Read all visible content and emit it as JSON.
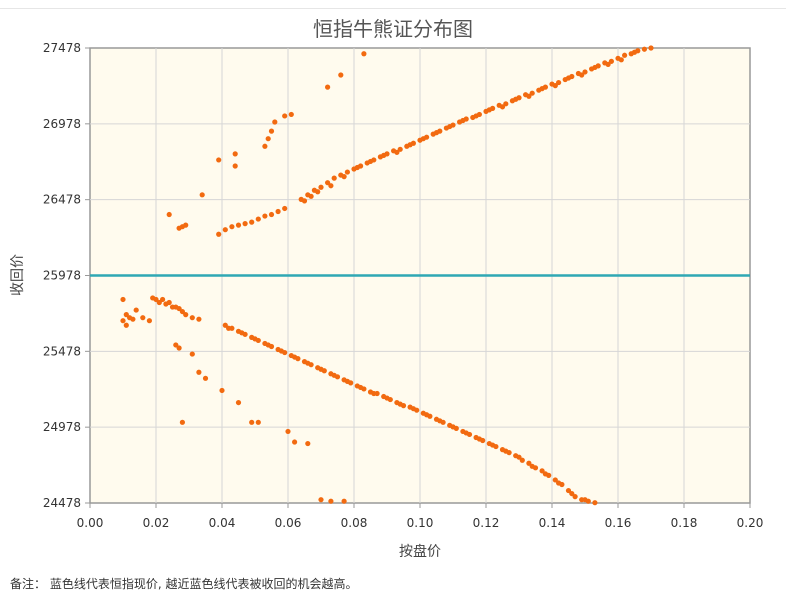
{
  "chart_data": {
    "type": "scatter",
    "title": "恒指牛熊证分布图",
    "xlabel": "按盘价",
    "ylabel": "收回价",
    "xlim": [
      0.0,
      0.2
    ],
    "ylim": [
      24478,
      27478
    ],
    "x_ticks": [
      "0.00",
      "0.02",
      "0.04",
      "0.06",
      "0.08",
      "0.10",
      "0.12",
      "0.14",
      "0.16",
      "0.18",
      "0.20"
    ],
    "y_ticks": [
      "24478",
      "24978",
      "25478",
      "25978",
      "26478",
      "26978",
      "27478"
    ],
    "grid": true,
    "reference_line": {
      "y": 25978,
      "color": "#2fa8b4"
    },
    "series": [
      {
        "color": "#f26a10",
        "points": [
          [
            0.027,
            26290
          ],
          [
            0.028,
            26300
          ],
          [
            0.029,
            26310
          ],
          [
            0.024,
            26380
          ],
          [
            0.034,
            26510
          ],
          [
            0.039,
            26740
          ],
          [
            0.044,
            26700
          ],
          [
            0.044,
            26780
          ],
          [
            0.053,
            26830
          ],
          [
            0.054,
            26880
          ],
          [
            0.055,
            26930
          ],
          [
            0.056,
            26990
          ],
          [
            0.059,
            27030
          ],
          [
            0.061,
            27040
          ],
          [
            0.072,
            27220
          ],
          [
            0.076,
            27300
          ],
          [
            0.083,
            27440
          ],
          [
            0.039,
            26250
          ],
          [
            0.041,
            26280
          ],
          [
            0.043,
            26300
          ],
          [
            0.045,
            26310
          ],
          [
            0.047,
            26320
          ],
          [
            0.049,
            26330
          ],
          [
            0.051,
            26350
          ],
          [
            0.053,
            26370
          ],
          [
            0.055,
            26380
          ],
          [
            0.057,
            26400
          ],
          [
            0.059,
            26420
          ],
          [
            0.064,
            26480
          ],
          [
            0.066,
            26510
          ],
          [
            0.068,
            26540
          ],
          [
            0.07,
            26560
          ],
          [
            0.072,
            26590
          ],
          [
            0.074,
            26620
          ],
          [
            0.076,
            26640
          ],
          [
            0.078,
            26660
          ],
          [
            0.08,
            26680
          ],
          [
            0.082,
            26700
          ],
          [
            0.084,
            26720
          ],
          [
            0.086,
            26740
          ],
          [
            0.088,
            26760
          ],
          [
            0.09,
            26780
          ],
          [
            0.092,
            26800
          ],
          [
            0.094,
            26810
          ],
          [
            0.096,
            26830
          ],
          [
            0.098,
            26850
          ],
          [
            0.1,
            26870
          ],
          [
            0.102,
            26890
          ],
          [
            0.104,
            26910
          ],
          [
            0.106,
            26930
          ],
          [
            0.108,
            26950
          ],
          [
            0.11,
            26970
          ],
          [
            0.112,
            26990
          ],
          [
            0.114,
            27010
          ],
          [
            0.116,
            27020
          ],
          [
            0.118,
            27040
          ],
          [
            0.12,
            27060
          ],
          [
            0.122,
            27080
          ],
          [
            0.124,
            27100
          ],
          [
            0.126,
            27110
          ],
          [
            0.128,
            27130
          ],
          [
            0.13,
            27150
          ],
          [
            0.132,
            27170
          ],
          [
            0.134,
            27180
          ],
          [
            0.136,
            27200
          ],
          [
            0.138,
            27220
          ],
          [
            0.14,
            27240
          ],
          [
            0.142,
            27250
          ],
          [
            0.144,
            27270
          ],
          [
            0.146,
            27290
          ],
          [
            0.148,
            27310
          ],
          [
            0.15,
            27320
          ],
          [
            0.152,
            27340
          ],
          [
            0.154,
            27360
          ],
          [
            0.156,
            27380
          ],
          [
            0.158,
            27390
          ],
          [
            0.16,
            27410
          ],
          [
            0.162,
            27430
          ],
          [
            0.164,
            27440
          ],
          [
            0.166,
            27460
          ],
          [
            0.168,
            27470
          ],
          [
            0.17,
            27478
          ],
          [
            0.065,
            26470
          ],
          [
            0.067,
            26500
          ],
          [
            0.069,
            26530
          ],
          [
            0.073,
            26570
          ],
          [
            0.077,
            26630
          ],
          [
            0.081,
            26690
          ],
          [
            0.085,
            26730
          ],
          [
            0.089,
            26770
          ],
          [
            0.093,
            26790
          ],
          [
            0.097,
            26840
          ],
          [
            0.101,
            26880
          ],
          [
            0.105,
            26920
          ],
          [
            0.109,
            26960
          ],
          [
            0.113,
            27000
          ],
          [
            0.117,
            27030
          ],
          [
            0.121,
            27070
          ],
          [
            0.125,
            27090
          ],
          [
            0.129,
            27140
          ],
          [
            0.133,
            27160
          ],
          [
            0.137,
            27210
          ],
          [
            0.141,
            27230
          ],
          [
            0.145,
            27280
          ],
          [
            0.149,
            27300
          ],
          [
            0.153,
            27350
          ],
          [
            0.157,
            27370
          ],
          [
            0.161,
            27400
          ],
          [
            0.165,
            27450
          ],
          [
            0.01,
            25820
          ],
          [
            0.01,
            25680
          ],
          [
            0.011,
            25650
          ],
          [
            0.011,
            25720
          ],
          [
            0.012,
            25700
          ],
          [
            0.013,
            25690
          ],
          [
            0.014,
            25750
          ],
          [
            0.016,
            25700
          ],
          [
            0.018,
            25680
          ],
          [
            0.019,
            25830
          ],
          [
            0.02,
            25820
          ],
          [
            0.021,
            25800
          ],
          [
            0.022,
            25820
          ],
          [
            0.023,
            25790
          ],
          [
            0.024,
            25800
          ],
          [
            0.025,
            25770
          ],
          [
            0.026,
            25770
          ],
          [
            0.027,
            25760
          ],
          [
            0.028,
            25740
          ],
          [
            0.029,
            25720
          ],
          [
            0.031,
            25700
          ],
          [
            0.033,
            25690
          ],
          [
            0.026,
            25520
          ],
          [
            0.027,
            25500
          ],
          [
            0.031,
            25460
          ],
          [
            0.033,
            25340
          ],
          [
            0.035,
            25300
          ],
          [
            0.04,
            25220
          ],
          [
            0.045,
            25140
          ],
          [
            0.049,
            25010
          ],
          [
            0.051,
            25010
          ],
          [
            0.028,
            25010
          ],
          [
            0.06,
            24950
          ],
          [
            0.062,
            24880
          ],
          [
            0.066,
            24870
          ],
          [
            0.07,
            24500
          ],
          [
            0.073,
            24490
          ],
          [
            0.077,
            24490
          ],
          [
            0.041,
            25650
          ],
          [
            0.043,
            25630
          ],
          [
            0.045,
            25610
          ],
          [
            0.047,
            25590
          ],
          [
            0.049,
            25570
          ],
          [
            0.051,
            25550
          ],
          [
            0.053,
            25530
          ],
          [
            0.055,
            25510
          ],
          [
            0.057,
            25490
          ],
          [
            0.059,
            25470
          ],
          [
            0.061,
            25450
          ],
          [
            0.063,
            25430
          ],
          [
            0.065,
            25410
          ],
          [
            0.067,
            25390
          ],
          [
            0.069,
            25370
          ],
          [
            0.071,
            25350
          ],
          [
            0.073,
            25330
          ],
          [
            0.075,
            25310
          ],
          [
            0.077,
            25290
          ],
          [
            0.079,
            25270
          ],
          [
            0.081,
            25250
          ],
          [
            0.083,
            25230
          ],
          [
            0.085,
            25210
          ],
          [
            0.087,
            25200
          ],
          [
            0.089,
            25180
          ],
          [
            0.091,
            25160
          ],
          [
            0.093,
            25140
          ],
          [
            0.095,
            25120
          ],
          [
            0.097,
            25110
          ],
          [
            0.099,
            25090
          ],
          [
            0.101,
            25070
          ],
          [
            0.103,
            25050
          ],
          [
            0.105,
            25030
          ],
          [
            0.107,
            25010
          ],
          [
            0.109,
            24990
          ],
          [
            0.111,
            24970
          ],
          [
            0.113,
            24950
          ],
          [
            0.115,
            24930
          ],
          [
            0.117,
            24910
          ],
          [
            0.119,
            24890
          ],
          [
            0.121,
            24870
          ],
          [
            0.123,
            24850
          ],
          [
            0.125,
            24830
          ],
          [
            0.127,
            24810
          ],
          [
            0.129,
            24790
          ],
          [
            0.131,
            24760
          ],
          [
            0.133,
            24740
          ],
          [
            0.135,
            24710
          ],
          [
            0.137,
            24690
          ],
          [
            0.139,
            24660
          ],
          [
            0.141,
            24630
          ],
          [
            0.143,
            24600
          ],
          [
            0.145,
            24560
          ],
          [
            0.147,
            24520
          ],
          [
            0.149,
            24500
          ],
          [
            0.151,
            24490
          ],
          [
            0.153,
            24480
          ],
          [
            0.042,
            25630
          ],
          [
            0.046,
            25600
          ],
          [
            0.05,
            25560
          ],
          [
            0.054,
            25520
          ],
          [
            0.058,
            25480
          ],
          [
            0.062,
            25440
          ],
          [
            0.066,
            25400
          ],
          [
            0.07,
            25360
          ],
          [
            0.074,
            25320
          ],
          [
            0.078,
            25280
          ],
          [
            0.082,
            25240
          ],
          [
            0.086,
            25200
          ],
          [
            0.09,
            25170
          ],
          [
            0.094,
            25130
          ],
          [
            0.098,
            25100
          ],
          [
            0.102,
            25060
          ],
          [
            0.106,
            25020
          ],
          [
            0.11,
            24980
          ],
          [
            0.114,
            24940
          ],
          [
            0.118,
            24900
          ],
          [
            0.122,
            24860
          ],
          [
            0.126,
            24820
          ],
          [
            0.13,
            24780
          ],
          [
            0.134,
            24720
          ],
          [
            0.138,
            24670
          ],
          [
            0.142,
            24610
          ],
          [
            0.146,
            24540
          ],
          [
            0.15,
            24500
          ]
        ]
      }
    ]
  },
  "footnote": "备注： 蓝色线代表恒指现价, 越近蓝色线代表被收回的机会越高。"
}
